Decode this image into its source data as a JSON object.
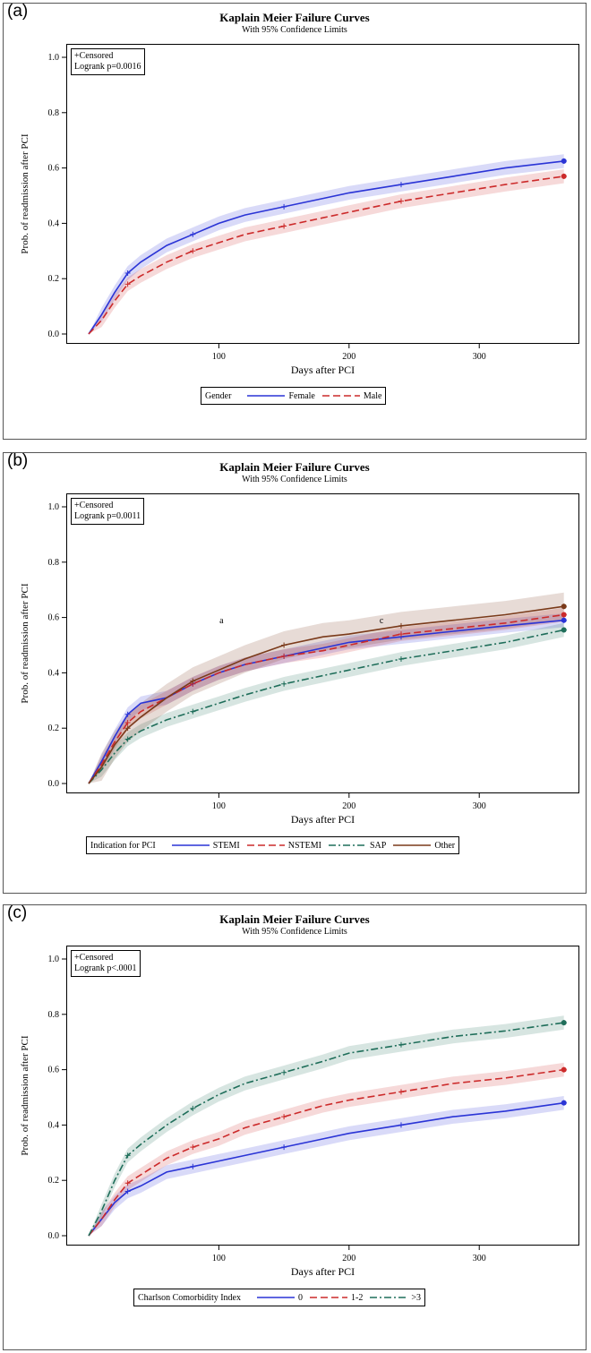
{
  "panels": [
    {
      "label": "(a)",
      "title": "Kaplain Meier Failure Curves",
      "subtitle": "With 95% Confidence Limits",
      "stats_censored": "+Censored",
      "stats_test": "Logrank p=0.0016",
      "legend_title": "Gender"
    },
    {
      "label": "(b)",
      "title": "Kaplain Meier Failure Curves",
      "subtitle": "With 95% Confidence Limits",
      "stats_censored": "+Censored",
      "stats_test": "Logrank p=0.0011",
      "legend_title": "Indication for PCI"
    },
    {
      "label": "(c)",
      "title": "Kaplain Meier Failure Curves",
      "subtitle": "With 95% Confidence Limits",
      "stats_censored": "+Censored",
      "stats_test": "Logrank p<.0001",
      "legend_title": "Charlson Comorbidity Index"
    }
  ],
  "chart_data": [
    {
      "type": "line",
      "title": "Kaplain Meier Failure Curves",
      "subtitle": "With 95% Confidence Limits",
      "xlabel": "Days after PCI",
      "ylabel": "Prob. of readmission after PCI",
      "xlim": [
        0,
        370
      ],
      "ylim": [
        0,
        1
      ],
      "xticks": [
        "100",
        "200",
        "300"
      ],
      "yticks": [
        "0.0",
        "0.2",
        "0.4",
        "0.6",
        "0.8",
        "1.0"
      ],
      "legend_placement": "bottom",
      "series": [
        {
          "name": "Female",
          "color": "#2a34d6",
          "dash": "solid",
          "x": [
            0,
            10,
            20,
            30,
            40,
            60,
            80,
            100,
            120,
            150,
            180,
            200,
            240,
            280,
            320,
            365
          ],
          "y": [
            0,
            0.07,
            0.15,
            0.22,
            0.26,
            0.32,
            0.36,
            0.4,
            0.43,
            0.46,
            0.49,
            0.51,
            0.54,
            0.57,
            0.6,
            0.625
          ]
        },
        {
          "name": "Male",
          "color": "#cc2a2a",
          "dash": "8,4",
          "x": [
            0,
            10,
            20,
            30,
            40,
            60,
            80,
            100,
            120,
            150,
            180,
            200,
            240,
            280,
            320,
            365
          ],
          "y": [
            0,
            0.05,
            0.12,
            0.18,
            0.21,
            0.26,
            0.3,
            0.33,
            0.36,
            0.39,
            0.42,
            0.44,
            0.48,
            0.51,
            0.54,
            0.57
          ]
        }
      ]
    },
    {
      "type": "line",
      "title": "Kaplain Meier Failure Curves",
      "subtitle": "With 95% Confidence Limits",
      "xlabel": "Days after PCI",
      "ylabel": "Prob. of readmission after PCI",
      "xlim": [
        0,
        370
      ],
      "ylim": [
        0,
        1
      ],
      "xticks": [
        "100",
        "200",
        "300"
      ],
      "yticks": [
        "0.0",
        "0.2",
        "0.4",
        "0.6",
        "0.8",
        "1.0"
      ],
      "legend_placement": "bottom",
      "annotations": [
        {
          "text": "a",
          "x": 102,
          "y": 0.58
        },
        {
          "text": "c",
          "x": 225,
          "y": 0.58
        }
      ],
      "series": [
        {
          "name": "STEMI",
          "color": "#2a34d6",
          "dash": "solid",
          "x": [
            0,
            10,
            20,
            30,
            40,
            60,
            80,
            100,
            120,
            150,
            180,
            200,
            240,
            280,
            320,
            365
          ],
          "y": [
            0,
            0.08,
            0.17,
            0.25,
            0.29,
            0.31,
            0.36,
            0.4,
            0.43,
            0.46,
            0.49,
            0.51,
            0.53,
            0.55,
            0.57,
            0.59
          ]
        },
        {
          "name": "NSTEMI",
          "color": "#cc2a2a",
          "dash": "8,4",
          "x": [
            0,
            10,
            20,
            30,
            40,
            60,
            80,
            100,
            120,
            150,
            180,
            200,
            240,
            280,
            320,
            365
          ],
          "y": [
            0,
            0.07,
            0.15,
            0.22,
            0.26,
            0.31,
            0.36,
            0.4,
            0.43,
            0.46,
            0.48,
            0.5,
            0.54,
            0.56,
            0.58,
            0.61
          ]
        },
        {
          "name": "SAP",
          "color": "#1f6e5a",
          "dash": "8,3,2,3",
          "x": [
            0,
            10,
            20,
            30,
            40,
            60,
            80,
            100,
            120,
            150,
            180,
            200,
            240,
            280,
            320,
            365
          ],
          "y": [
            0,
            0.05,
            0.11,
            0.16,
            0.19,
            0.23,
            0.26,
            0.29,
            0.32,
            0.36,
            0.39,
            0.41,
            0.45,
            0.48,
            0.51,
            0.555
          ]
        },
        {
          "name": "Other",
          "color": "#7a3a1a",
          "dash": "solid",
          "x": [
            0,
            10,
            20,
            30,
            40,
            60,
            80,
            100,
            120,
            150,
            180,
            200,
            240,
            280,
            320,
            365
          ],
          "y": [
            0,
            0.06,
            0.14,
            0.2,
            0.24,
            0.31,
            0.37,
            0.41,
            0.45,
            0.5,
            0.53,
            0.54,
            0.57,
            0.59,
            0.61,
            0.64
          ]
        }
      ]
    },
    {
      "type": "line",
      "title": "Kaplain Meier Failure Curves",
      "subtitle": "With 95% Confidence Limits",
      "xlabel": "Days after PCI",
      "ylabel": "Prob. of readmission after PCI",
      "xlim": [
        0,
        370
      ],
      "ylim": [
        0,
        1
      ],
      "xticks": [
        "100",
        "200",
        "300"
      ],
      "yticks": [
        "0.0",
        "0.2",
        "0.4",
        "0.6",
        "0.8",
        "1.0"
      ],
      "legend_placement": "bottom",
      "series": [
        {
          "name": "0",
          "color": "#2a34d6",
          "dash": "solid",
          "x": [
            0,
            10,
            20,
            30,
            40,
            60,
            80,
            100,
            120,
            150,
            180,
            200,
            240,
            280,
            320,
            365
          ],
          "y": [
            0,
            0.06,
            0.12,
            0.16,
            0.18,
            0.23,
            0.25,
            0.27,
            0.29,
            0.32,
            0.35,
            0.37,
            0.4,
            0.43,
            0.45,
            0.48
          ]
        },
        {
          "name": "1-2",
          "color": "#cc2a2a",
          "dash": "8,4",
          "x": [
            0,
            10,
            20,
            30,
            40,
            60,
            80,
            100,
            120,
            150,
            180,
            200,
            240,
            280,
            320,
            365
          ],
          "y": [
            0,
            0.06,
            0.13,
            0.19,
            0.22,
            0.28,
            0.32,
            0.35,
            0.39,
            0.43,
            0.47,
            0.49,
            0.52,
            0.55,
            0.57,
            0.6
          ]
        },
        {
          "name": ">3",
          "color": "#1f6e5a",
          "dash": "8,3,2,3",
          "x": [
            0,
            10,
            20,
            30,
            40,
            60,
            80,
            100,
            120,
            150,
            180,
            200,
            240,
            280,
            320,
            365
          ],
          "y": [
            0,
            0.09,
            0.2,
            0.29,
            0.33,
            0.4,
            0.46,
            0.51,
            0.55,
            0.59,
            0.63,
            0.66,
            0.69,
            0.72,
            0.74,
            0.77
          ]
        }
      ]
    }
  ]
}
